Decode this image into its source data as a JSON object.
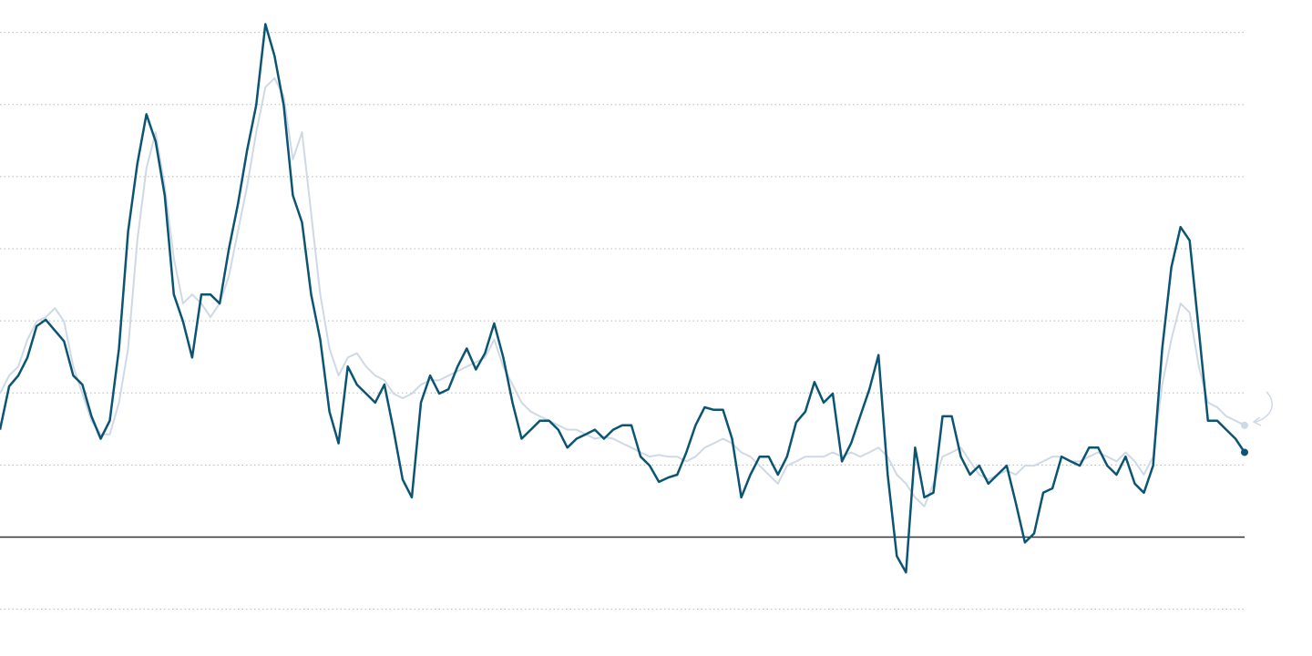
{
  "chart_data": {
    "type": "line",
    "ylim": [
      -3.3,
      14.9
    ],
    "yticks": [
      -2,
      0,
      2,
      4,
      6,
      8,
      10,
      12,
      14
    ],
    "grid": true,
    "series": [
      {
        "color": "#cfd9e6",
        "values": [
          3.98,
          4.48,
          4.73,
          5.48,
          5.98,
          6.1,
          6.35,
          5.98,
          4.73,
          3.98,
          3.23,
          2.85,
          2.85,
          3.73,
          5.23,
          8.23,
          10.23,
          11.23,
          9.73,
          7.73,
          6.48,
          6.73,
          6.48,
          6.1,
          6.48,
          7.23,
          8.48,
          9.73,
          11.23,
          12.48,
          12.73,
          12.23,
          10.48,
          11.23,
          8.98,
          6.73,
          5.23,
          4.48,
          4.98,
          5.1,
          4.73,
          4.48,
          4.35,
          3.98,
          3.85,
          3.98,
          4.23,
          4.35,
          4.35,
          4.48,
          4.6,
          4.73,
          4.85,
          4.98,
          5.48,
          4.73,
          4.23,
          3.73,
          3.48,
          3.35,
          3.23,
          3.1,
          2.98,
          2.98,
          2.85,
          2.73,
          2.78,
          2.73,
          2.6,
          2.48,
          2.35,
          2.23,
          2.28,
          2.23,
          2.23,
          2.1,
          2.23,
          2.48,
          2.6,
          2.73,
          2.6,
          2.35,
          2.23,
          1.98,
          1.73,
          1.48,
          1.98,
          2.1,
          2.23,
          2.23,
          2.23,
          2.35,
          2.23,
          2.35,
          2.23,
          2.35,
          2.48,
          2.23,
          1.73,
          1.48,
          1.1,
          0.85,
          1.48,
          2.23,
          2.35,
          2.48,
          2.1,
          1.73,
          1.6,
          1.73,
          1.85,
          1.73,
          1.98,
          1.98,
          2.1,
          2.23,
          2.23,
          2.1,
          2.1,
          2.23,
          2.35,
          2.23,
          2.1,
          2.35,
          2.1,
          1.73,
          2.23,
          4.23,
          5.48,
          6.48,
          6.23,
          4.73,
          3.73,
          3.6,
          3.35,
          3.23,
          3.1
        ]
      },
      {
        "color": "#0b5572",
        "values": [
          2.98,
          4.18,
          4.48,
          4.98,
          5.85,
          6.03,
          5.73,
          5.43,
          4.48,
          4.23,
          3.35,
          2.73,
          3.23,
          5.23,
          8.48,
          10.35,
          11.73,
          10.98,
          9.48,
          6.73,
          5.98,
          4.98,
          6.73,
          6.73,
          6.48,
          7.98,
          9.23,
          10.73,
          11.98,
          14.23,
          13.35,
          11.98,
          9.48,
          8.73,
          6.73,
          5.48,
          3.48,
          2.6,
          4.73,
          4.23,
          3.98,
          3.73,
          4.23,
          2.98,
          1.6,
          1.1,
          3.73,
          4.48,
          3.98,
          4.1,
          4.73,
          5.23,
          4.65,
          5.1,
          5.93,
          4.98,
          3.73,
          2.73,
          2.98,
          3.23,
          3.23,
          2.98,
          2.48,
          2.73,
          2.85,
          2.98,
          2.73,
          2.98,
          3.1,
          3.1,
          2.23,
          1.98,
          1.53,
          1.65,
          1.73,
          2.35,
          3.1,
          3.6,
          3.53,
          3.53,
          2.73,
          1.1,
          1.73,
          2.23,
          2.23,
          1.73,
          2.23,
          3.18,
          3.48,
          4.3,
          3.73,
          3.98,
          2.1,
          2.6,
          3.35,
          4.1,
          5.05,
          1.73,
          -0.53,
          -0.98,
          2.48,
          1.1,
          1.23,
          3.35,
          3.35,
          2.23,
          1.73,
          1.98,
          1.48,
          1.73,
          1.98,
          0.95,
          -0.15,
          0.1,
          1.23,
          1.35,
          2.23,
          2.1,
          1.98,
          2.48,
          2.48,
          1.98,
          1.73,
          2.23,
          1.48,
          1.23,
          1.98,
          5.23,
          7.48,
          8.6,
          8.23,
          5.73,
          3.23,
          3.23,
          2.98,
          2.73,
          2.35
        ]
      }
    ]
  }
}
